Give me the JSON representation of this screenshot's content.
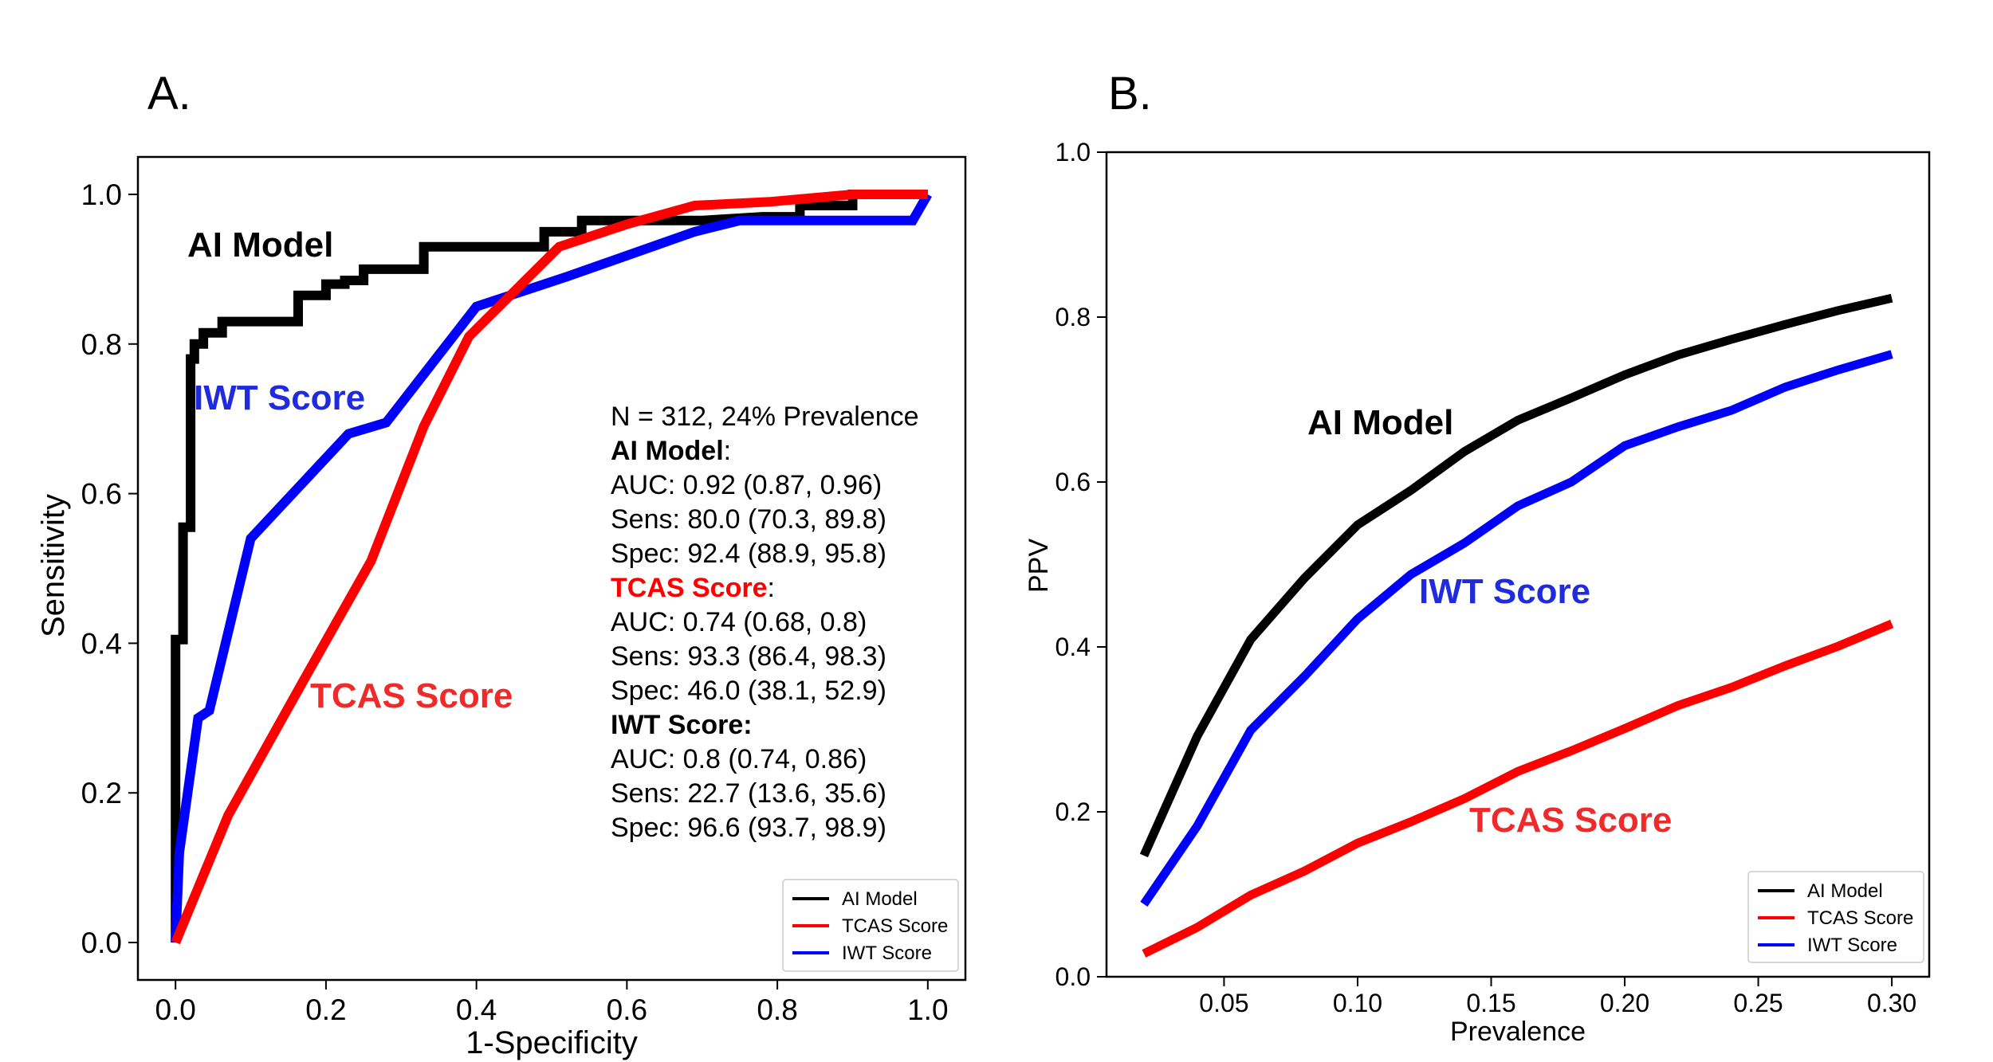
{
  "colors": {
    "ai": "#000000",
    "tcas": "#ff0000",
    "iwt": "#0000ff",
    "tcas_label": "#ee2a2a",
    "iwt_label": "#1f2bdd"
  },
  "chart_data": [
    {
      "type": "line",
      "panel_label": "A.",
      "title": "",
      "xlabel": "1-Specificity",
      "ylabel": "Sensitivity",
      "xlim": [
        -0.05,
        1.05
      ],
      "ylim": [
        -0.05,
        1.05
      ],
      "xticks": [
        0.0,
        0.2,
        0.4,
        0.6,
        0.8,
        1.0
      ],
      "yticks": [
        0.0,
        0.2,
        0.4,
        0.6,
        0.8,
        1.0
      ],
      "grid": false,
      "legend": {
        "placement": "lower-right",
        "entries": [
          "AI Model",
          "TCAS Score",
          "IWT Score"
        ]
      },
      "series": [
        {
          "name": "AI Model",
          "color": "#000000",
          "x": [
            0,
            0,
            0.01,
            0.01,
            0.02,
            0.02,
            0.02,
            0.025,
            0.025,
            0.037,
            0.037,
            0.062,
            0.062,
            0.087,
            0.087,
            0.125,
            0.163,
            0.163,
            0.2,
            0.2,
            0.225,
            0.225,
            0.25,
            0.25,
            0.3,
            0.33,
            0.33,
            0.42,
            0.49,
            0.49,
            0.54,
            0.54,
            0.62,
            0.7,
            0.78,
            0.83,
            0.83,
            0.9,
            0.9,
            1.0
          ],
          "y": [
            0,
            0.405,
            0.405,
            0.555,
            0.555,
            0.76,
            0.78,
            0.78,
            0.8,
            0.8,
            0.815,
            0.815,
            0.83,
            0.83,
            0.83,
            0.83,
            0.83,
            0.865,
            0.865,
            0.88,
            0.88,
            0.885,
            0.885,
            0.9,
            0.9,
            0.9,
            0.93,
            0.93,
            0.93,
            0.95,
            0.95,
            0.965,
            0.965,
            0.965,
            0.97,
            0.97,
            0.985,
            0.985,
            1.0,
            1.0
          ]
        },
        {
          "name": "TCAS Score",
          "color": "#ff0000",
          "x": [
            0,
            0.07,
            0.17,
            0.26,
            0.33,
            0.39,
            0.51,
            0.6,
            0.69,
            0.79,
            0.9,
            1.0
          ],
          "y": [
            0,
            0.17,
            0.35,
            0.51,
            0.69,
            0.81,
            0.93,
            0.96,
            0.985,
            0.99,
            1.0,
            1.0
          ]
        },
        {
          "name": "IWT Score",
          "color": "#0000ff",
          "x": [
            0,
            0.005,
            0.03,
            0.045,
            0.1,
            0.23,
            0.28,
            0.4,
            0.52,
            0.69,
            0.75,
            0.83,
            0.98,
            1.0
          ],
          "y": [
            0,
            0.12,
            0.3,
            0.31,
            0.54,
            0.68,
            0.695,
            0.85,
            0.89,
            0.95,
            0.965,
            0.965,
            0.965,
            1.0
          ]
        }
      ],
      "curve_labels": [
        "AI Model",
        "IWT Score",
        "TCAS Score"
      ],
      "annotation": {
        "header": "N = 312,  24% Prevalence",
        "groups": [
          {
            "name": "AI Model",
            "name_suffix": ":",
            "lines": [
              "AUC: 0.92 (0.87, 0.96)",
              "Sens: 80.0 (70.3, 89.8)",
              "Spec: 92.4 (88.9, 95.8)"
            ]
          },
          {
            "name": "TCAS Score",
            "name_suffix": ":",
            "lines": [
              "AUC: 0.74 (0.68, 0.8)",
              "Sens: 93.3 (86.4, 98.3)",
              "Spec: 46.0 (38.1, 52.9)"
            ]
          },
          {
            "name": "IWT Score:",
            "name_suffix": "",
            "lines": [
              "AUC: 0.8 (0.74, 0.86)",
              "Sens: 22.7 (13.6, 35.6)",
              "Spec: 96.6 (93.7, 98.9)"
            ]
          }
        ]
      }
    },
    {
      "type": "line",
      "panel_label": "B.",
      "title": "",
      "xlabel": "Prevalence",
      "ylabel": "PPV",
      "xlim": [
        0.006,
        0.314
      ],
      "ylim": [
        0.0,
        1.0
      ],
      "xticks": [
        0.05,
        0.1,
        0.15,
        0.2,
        0.25,
        0.3
      ],
      "xtick_labels": [
        "0.05",
        "0.10",
        "0.15",
        "0.20",
        "0.25",
        "0.30"
      ],
      "yticks": [
        0.0,
        0.2,
        0.4,
        0.6,
        0.8,
        1.0
      ],
      "grid": false,
      "legend": {
        "placement": "lower-right",
        "entries": [
          "AI Model",
          "TCAS Score",
          "IWT Score"
        ]
      },
      "series": [
        {
          "name": "AI Model",
          "color": "#000000",
          "x": [
            0.02,
            0.04,
            0.06,
            0.08,
            0.1,
            0.12,
            0.14,
            0.16,
            0.18,
            0.2,
            0.22,
            0.24,
            0.26,
            0.28,
            0.3
          ],
          "y": [
            0.147,
            0.292,
            0.409,
            0.483,
            0.548,
            0.59,
            0.637,
            0.675,
            0.702,
            0.73,
            0.754,
            0.773,
            0.791,
            0.808,
            0.823
          ]
        },
        {
          "name": "TCAS Score",
          "color": "#ff0000",
          "x": [
            0.02,
            0.04,
            0.06,
            0.08,
            0.1,
            0.12,
            0.14,
            0.16,
            0.18,
            0.2,
            0.22,
            0.24,
            0.26,
            0.28,
            0.3
          ],
          "y": [
            0.028,
            0.06,
            0.099,
            0.128,
            0.162,
            0.188,
            0.216,
            0.249,
            0.274,
            0.301,
            0.329,
            0.351,
            0.377,
            0.401,
            0.428
          ]
        },
        {
          "name": "IWT Score",
          "color": "#0000ff",
          "x": [
            0.02,
            0.04,
            0.06,
            0.08,
            0.1,
            0.12,
            0.14,
            0.16,
            0.18,
            0.2,
            0.22,
            0.24,
            0.26,
            0.28,
            0.3
          ],
          "y": [
            0.088,
            0.183,
            0.299,
            0.364,
            0.434,
            0.488,
            0.526,
            0.571,
            0.6,
            0.644,
            0.667,
            0.687,
            0.715,
            0.736,
            0.755
          ]
        }
      ],
      "curve_labels": [
        "AI Model",
        "IWT Score",
        "TCAS Score"
      ]
    }
  ]
}
